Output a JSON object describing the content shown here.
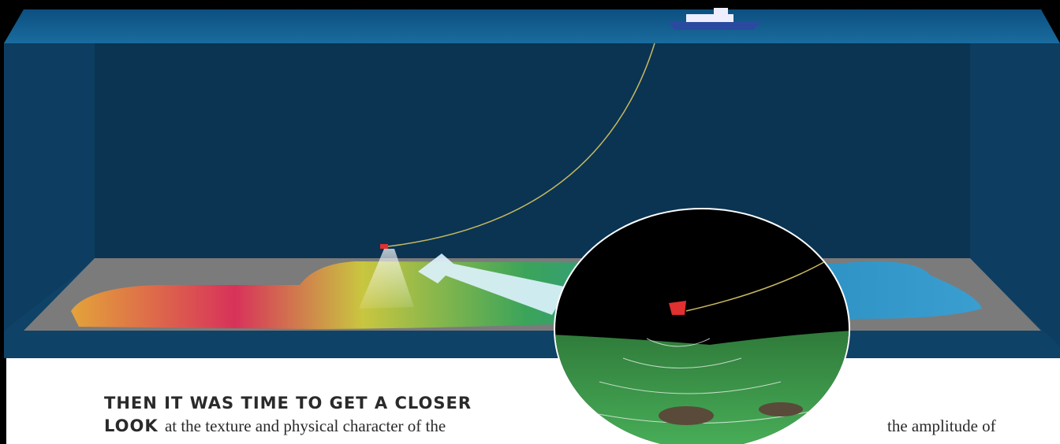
{
  "heading": {
    "line1": "THEN IT WAS TIME TO GET A CLOSER",
    "line2": "LOOK"
  },
  "body": {
    "part1": "at the texture and physical character of the",
    "part2": "the amplitude of"
  }
}
